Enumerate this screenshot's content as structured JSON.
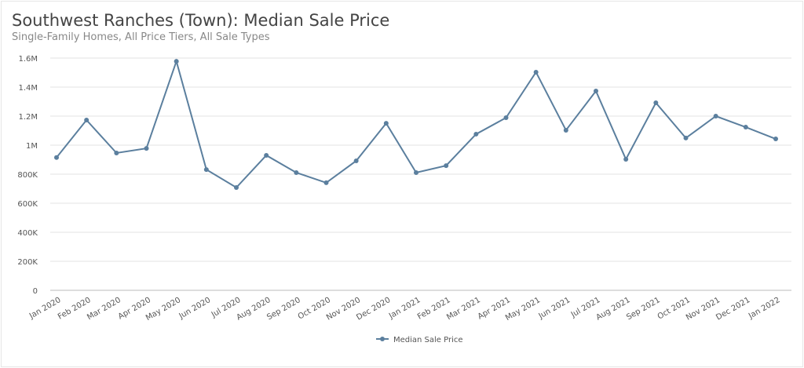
{
  "chart_data": {
    "type": "line",
    "title": "Southwest Ranches (Town): Median Sale Price",
    "subtitle": "Single-Family Homes, All Price Tiers, All Sale Types",
    "categories": [
      "Jan 2020",
      "Feb 2020",
      "Mar 2020",
      "Apr 2020",
      "May 2020",
      "Jun 2020",
      "Jul 2020",
      "Aug 2020",
      "Sep 2020",
      "Oct 2020",
      "Nov 2020",
      "Dec 2020",
      "Jan 2021",
      "Feb 2021",
      "Mar 2021",
      "Apr 2021",
      "May 2021",
      "Jun 2021",
      "Jul 2021",
      "Aug 2021",
      "Sep 2021",
      "Oct 2021",
      "Nov 2021",
      "Dec 2021",
      "Jan 2022"
    ],
    "series": [
      {
        "name": "Median Sale Price",
        "color": "#5b7f9e",
        "values": [
          915000,
          1173000,
          946000,
          978000,
          1578000,
          832000,
          708000,
          930000,
          811000,
          741000,
          892000,
          1151000,
          811000,
          859000,
          1076000,
          1189000,
          1503000,
          1103000,
          1373000,
          903000,
          1292000,
          1049000,
          1200000,
          1124000,
          1043000
        ]
      }
    ],
    "ylim": [
      0,
      1600000
    ],
    "yticks": [
      0,
      200000,
      400000,
      600000,
      800000,
      1000000,
      1200000,
      1400000,
      1600000
    ],
    "ytick_labels": [
      "0",
      "200K",
      "400K",
      "600K",
      "800K",
      "1M",
      "1.2M",
      "1.4M",
      "1.6M"
    ],
    "grid": true,
    "legend_placement": "bottom"
  }
}
